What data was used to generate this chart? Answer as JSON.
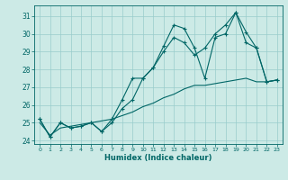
{
  "xlabel": "Humidex (Indice chaleur)",
  "bg_color": "#cceae6",
  "grid_color": "#99cccc",
  "line_color": "#006666",
  "xlim": [
    -0.5,
    23.5
  ],
  "ylim": [
    23.8,
    31.6
  ],
  "xticks": [
    0,
    1,
    2,
    3,
    4,
    5,
    6,
    7,
    8,
    9,
    10,
    11,
    12,
    13,
    14,
    15,
    16,
    17,
    18,
    19,
    20,
    21,
    22,
    23
  ],
  "yticks": [
    24,
    25,
    26,
    27,
    28,
    29,
    30,
    31
  ],
  "s1": [
    25.2,
    24.2,
    25.0,
    24.7,
    24.8,
    25.0,
    24.5,
    25.0,
    25.8,
    26.3,
    27.5,
    28.1,
    29.3,
    30.5,
    30.3,
    29.2,
    27.5,
    29.8,
    30.0,
    31.2,
    30.1,
    29.2,
    27.3,
    27.4
  ],
  "s2": [
    25.2,
    24.2,
    25.0,
    24.7,
    24.8,
    25.0,
    24.5,
    25.2,
    26.3,
    27.5,
    27.5,
    28.1,
    29.0,
    29.8,
    29.5,
    28.8,
    29.2,
    30.0,
    30.5,
    31.2,
    29.5,
    29.2,
    27.3,
    27.4
  ],
  "s3": [
    25.0,
    24.3,
    24.7,
    24.8,
    24.9,
    25.0,
    25.1,
    25.2,
    25.4,
    25.6,
    25.9,
    26.1,
    26.4,
    26.6,
    26.9,
    27.1,
    27.1,
    27.2,
    27.3,
    27.4,
    27.5,
    27.3,
    27.3,
    27.4
  ]
}
